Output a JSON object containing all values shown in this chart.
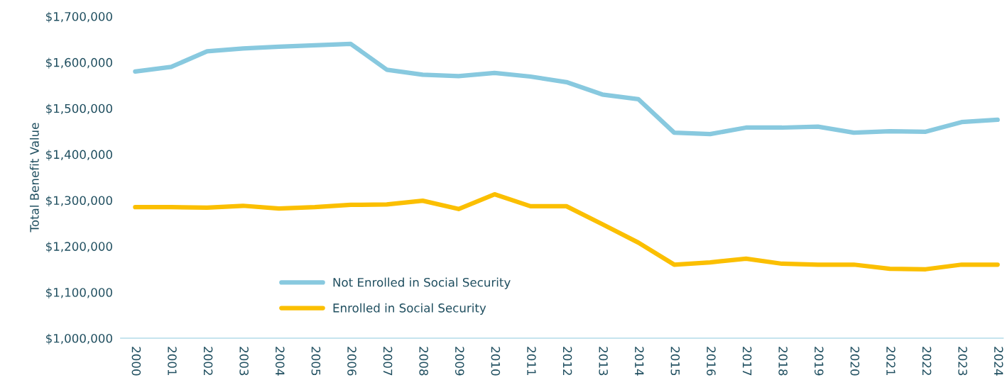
{
  "chart_data": {
    "type": "line",
    "ylabel": "Total Benefit Value",
    "categories": [
      "2000",
      "2001",
      "2002",
      "2003",
      "2004",
      "2005",
      "2006",
      "2007",
      "2008",
      "2009",
      "2010",
      "2011",
      "2012",
      "2013",
      "2014",
      "2015",
      "2016",
      "2017",
      "2018",
      "2019",
      "2020",
      "2021",
      "2022",
      "2023",
      "2024"
    ],
    "series": [
      {
        "name": "Not Enrolled in Social Security",
        "color": "#88c9df",
        "values": [
          1580000,
          1590000,
          1624000,
          1630000,
          1634000,
          1637000,
          1640000,
          1584000,
          1573000,
          1570000,
          1577000,
          1569000,
          1557000,
          1530000,
          1520000,
          1447000,
          1444000,
          1458000,
          1458000,
          1460000,
          1447000,
          1450000,
          1449000,
          1470000,
          1475000
        ]
      },
      {
        "name": "Enrolled in Social Security",
        "color": "#fbbf00",
        "values": [
          1285000,
          1285000,
          1284000,
          1288000,
          1282000,
          1285000,
          1290000,
          1291000,
          1299000,
          1281000,
          1313000,
          1287000,
          1287000,
          1248000,
          1208000,
          1160000,
          1165000,
          1173000,
          1162000,
          1160000,
          1160000,
          1151000,
          1150000,
          1160000,
          1160000
        ]
      }
    ],
    "ylim": [
      1000000,
      1700000
    ],
    "yticks": [
      {
        "value": 1000000,
        "label": "$1,000,000"
      },
      {
        "value": 1100000,
        "label": "$1,100,000"
      },
      {
        "value": 1200000,
        "label": "$1,200,000"
      },
      {
        "value": 1300000,
        "label": "$1,300,000"
      },
      {
        "value": 1400000,
        "label": "$1,400,000"
      },
      {
        "value": 1500000,
        "label": "$1,500,000"
      },
      {
        "value": 1600000,
        "label": "$1,600,000"
      },
      {
        "value": 1700000,
        "label": "$1,700,000"
      }
    ],
    "grid": false,
    "legend": "bottom left",
    "marker": "none",
    "line_style": "solid"
  }
}
